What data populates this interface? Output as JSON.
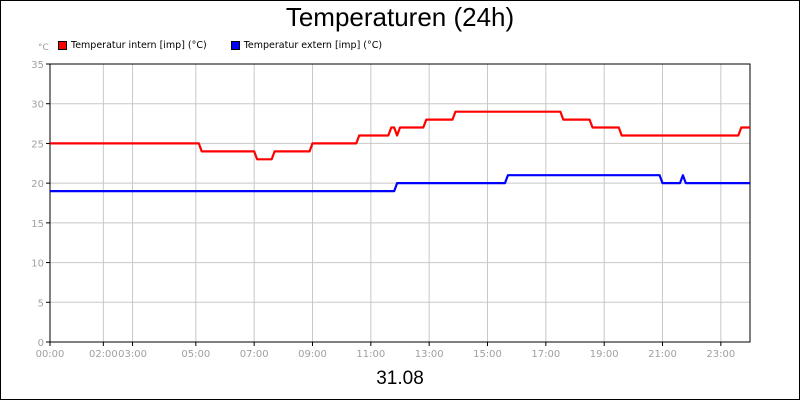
{
  "chart_data": {
    "type": "line",
    "title": "Temperaturen (24h)",
    "unit_label": "°C",
    "xlabel": "31.08",
    "ylim": [
      0,
      35
    ],
    "y_ticks": [
      0,
      5,
      10,
      15,
      20,
      25,
      30,
      35
    ],
    "x_range_hours": [
      0,
      24
    ],
    "x_ticks": [
      {
        "label": "00:00",
        "hour": 0
      },
      {
        "label": "02:00",
        "hour": 1.83
      },
      {
        "label": "03:00",
        "hour": 2.83
      },
      {
        "label": "05:00",
        "hour": 5
      },
      {
        "label": "07:00",
        "hour": 7
      },
      {
        "label": "09:00",
        "hour": 9
      },
      {
        "label": "11:00",
        "hour": 11
      },
      {
        "label": "13:00",
        "hour": 13
      },
      {
        "label": "15:00",
        "hour": 15
      },
      {
        "label": "17:00",
        "hour": 17
      },
      {
        "label": "19:00",
        "hour": 19
      },
      {
        "label": "21:00",
        "hour": 21
      },
      {
        "label": "23:00",
        "hour": 23
      }
    ],
    "grid": true,
    "legend_position": "top-left",
    "series": [
      {
        "name": "Temperatur intern [imp] (°C)",
        "color": "#ff0000",
        "points": [
          [
            0,
            25
          ],
          [
            5.1,
            25
          ],
          [
            5.2,
            24
          ],
          [
            7.0,
            24
          ],
          [
            7.1,
            23
          ],
          [
            7.6,
            23
          ],
          [
            7.7,
            24
          ],
          [
            8.9,
            24
          ],
          [
            9.0,
            25
          ],
          [
            10.5,
            25
          ],
          [
            10.6,
            26
          ],
          [
            11.6,
            26
          ],
          [
            11.7,
            27
          ],
          [
            11.8,
            27
          ],
          [
            11.9,
            26
          ],
          [
            12.0,
            27
          ],
          [
            12.8,
            27
          ],
          [
            12.9,
            28
          ],
          [
            13.8,
            28
          ],
          [
            13.9,
            29
          ],
          [
            17.5,
            29
          ],
          [
            17.6,
            28
          ],
          [
            18.5,
            28
          ],
          [
            18.6,
            27
          ],
          [
            19.5,
            27
          ],
          [
            19.6,
            26
          ],
          [
            23.6,
            26
          ],
          [
            23.7,
            27
          ],
          [
            24.0,
            27
          ]
        ]
      },
      {
        "name": "Temperatur extern [imp] (°C)",
        "color": "#0000ff",
        "points": [
          [
            0,
            19
          ],
          [
            11.8,
            19
          ],
          [
            11.9,
            20
          ],
          [
            15.6,
            20
          ],
          [
            15.7,
            21
          ],
          [
            20.9,
            21
          ],
          [
            21.0,
            20
          ],
          [
            21.6,
            20
          ],
          [
            21.7,
            21
          ],
          [
            21.8,
            20
          ],
          [
            24.0,
            20
          ]
        ]
      }
    ]
  }
}
